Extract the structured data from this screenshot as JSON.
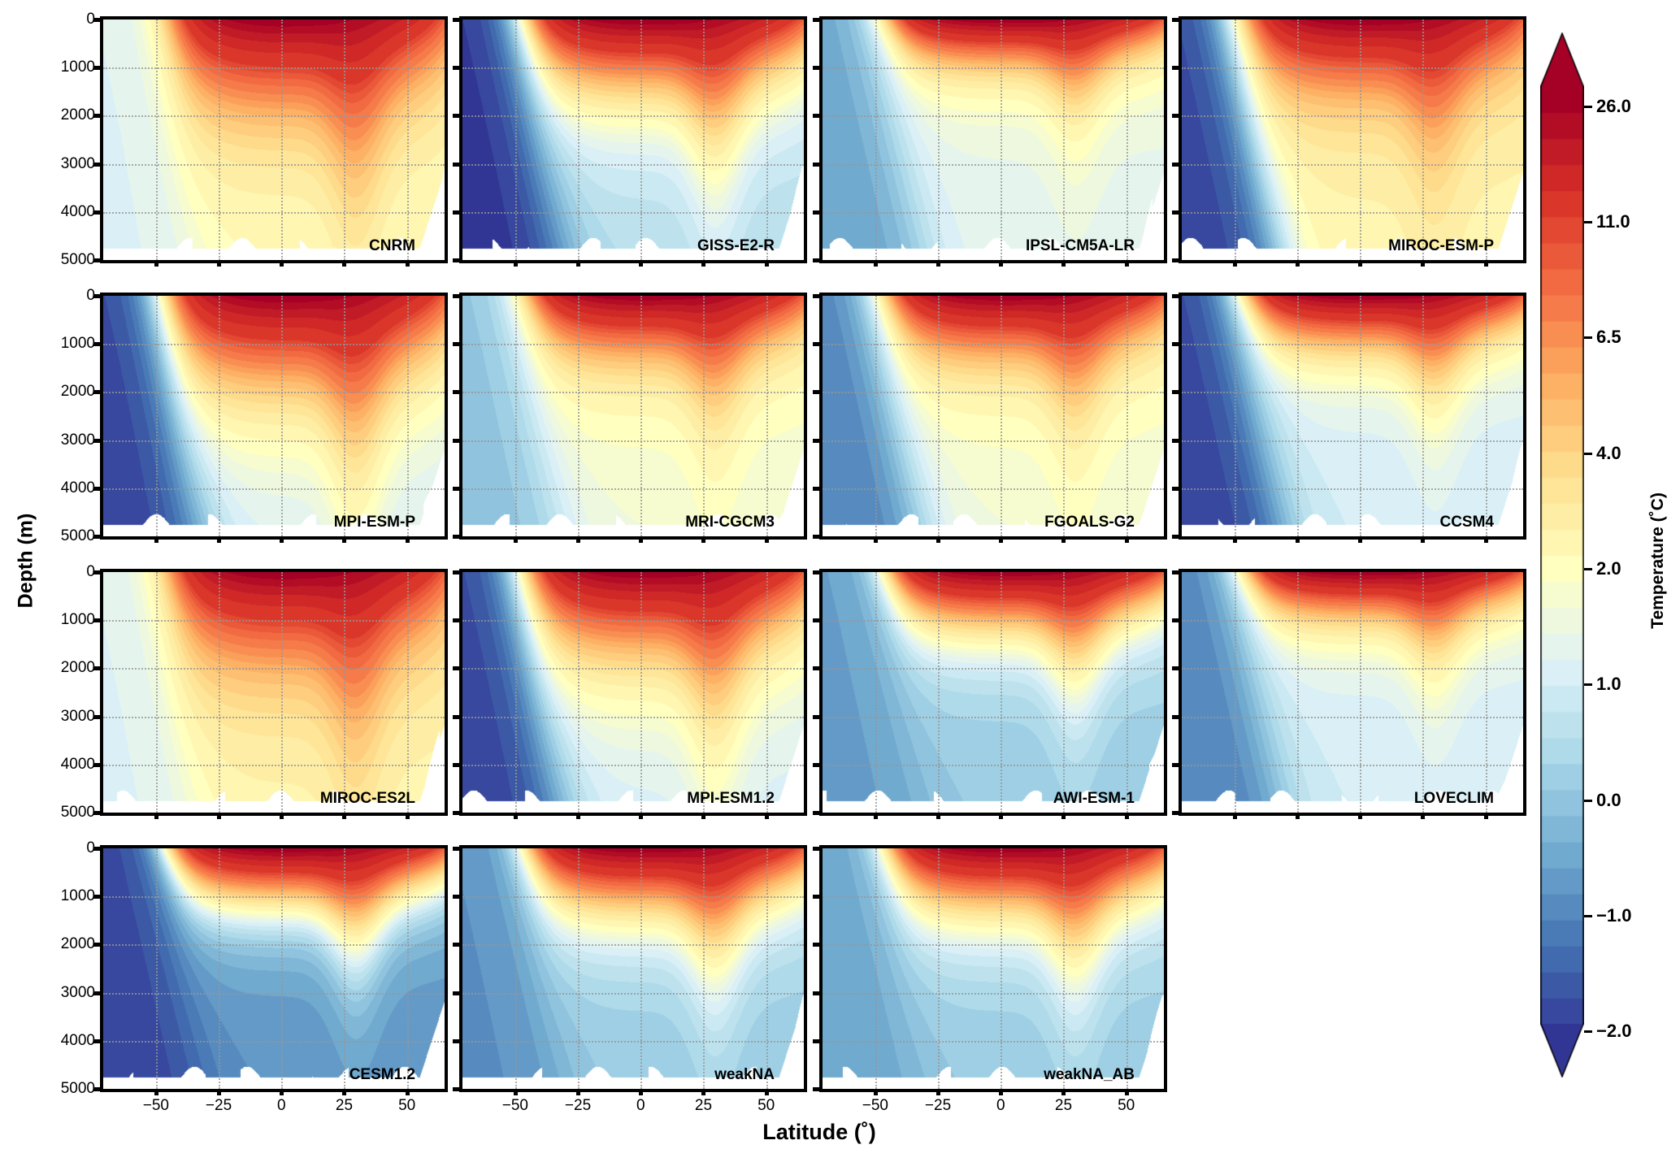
{
  "chart_data": {
    "type": "heatmap",
    "description_kind": "filled contour, zonal-mean ocean temperature sections",
    "xlabel": "Latitude (˚)",
    "ylabel": "Depth (m)",
    "xlim": [
      -71,
      65
    ],
    "ylim": [
      5000,
      0
    ],
    "xticks": [
      -50,
      -25,
      0,
      25,
      50
    ],
    "xtick_labels": [
      "−50",
      "−25",
      "0",
      "25",
      "50"
    ],
    "yticks": [
      0,
      1000,
      2000,
      3000,
      4000,
      5000
    ],
    "ytick_labels": [
      "0",
      "1000",
      "2000",
      "3000",
      "4000",
      "5000"
    ],
    "grid": true,
    "colorbar": {
      "label": "Temperature (˚C)",
      "ticks": [
        26.0,
        11.0,
        6.5,
        4.0,
        2.0,
        1.0,
        0.0,
        -1.0,
        -2.0
      ],
      "tick_labels": [
        "26.0",
        "11.0",
        "6.5",
        "4.0",
        "2.0",
        "1.0",
        "0.0",
        "−1.0",
        "−2.0"
      ],
      "extend": "both",
      "colormap": [
        "#313695",
        "#4575b4",
        "#74add1",
        "#abd9e9",
        "#e0f3f8",
        "#ffffbf",
        "#fee090",
        "#fdae61",
        "#f46d43",
        "#d73027",
        "#a50026"
      ]
    },
    "panels": [
      {
        "name": "CNRM",
        "deep_temp": 2.0,
        "south_temp": 1.2,
        "thermo_depth": 900
      },
      {
        "name": "GISS-E2-R",
        "deep_temp": 0.5,
        "south_temp": -2.0,
        "thermo_depth": 700
      },
      {
        "name": "IPSL-CM5A-LR",
        "deep_temp": 1.3,
        "south_temp": -0.5,
        "thermo_depth": 450
      },
      {
        "name": "MIROC-ESM-P",
        "deep_temp": 2.4,
        "south_temp": -1.8,
        "thermo_depth": 700
      },
      {
        "name": "MPI-ESM-P",
        "deep_temp": 1.0,
        "south_temp": -1.8,
        "thermo_depth": 900
      },
      {
        "name": "MRI-CGCM3",
        "deep_temp": 1.6,
        "south_temp": 0.0,
        "thermo_depth": 600
      },
      {
        "name": "FGOALS-G2",
        "deep_temp": 1.6,
        "south_temp": -1.0,
        "thermo_depth": 600
      },
      {
        "name": "CCSM4",
        "deep_temp": 1.0,
        "south_temp": -1.8,
        "thermo_depth": 500
      },
      {
        "name": "MIROC-ES2L",
        "deep_temp": 2.3,
        "south_temp": 1.2,
        "thermo_depth": 900
      },
      {
        "name": "MPI-ESM1.2",
        "deep_temp": 1.0,
        "south_temp": -1.8,
        "thermo_depth": 800
      },
      {
        "name": "AWI-ESM-1",
        "deep_temp": 0.1,
        "south_temp": -0.6,
        "thermo_depth": 550
      },
      {
        "name": "LOVECLIM",
        "deep_temp": 1.0,
        "south_temp": -1.0,
        "thermo_depth": 450
      },
      {
        "name": "CESM1.2",
        "deep_temp": -0.8,
        "south_temp": -1.8,
        "thermo_depth": 550
      },
      {
        "name": "weakNA",
        "deep_temp": 0.1,
        "south_temp": -0.8,
        "thermo_depth": 600
      },
      {
        "name": "weakNA_AB",
        "deep_temp": 0.1,
        "south_temp": -0.5,
        "thermo_depth": 600
      }
    ]
  }
}
